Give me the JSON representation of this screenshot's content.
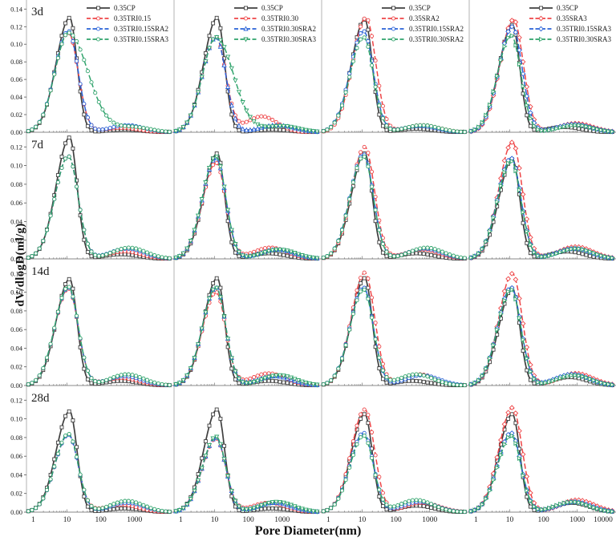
{
  "chart_data": {
    "type": "line",
    "x_scale": "log",
    "xlabel": "Pore Diameter(nm)",
    "ylabel": "dV/dlogD(ml/g)",
    "x_ticks": [
      1,
      10,
      100,
      1000,
      10000
    ],
    "grid": "off",
    "legend_position": "top-right-of-first-row-panels",
    "colors": {
      "black": "#3f3f3f",
      "red": "#ee4547",
      "blue": "#2a63d8",
      "green": "#2fa36b"
    },
    "rows": [
      {
        "label": "3d",
        "ytick_max": 0.14,
        "ytick_step": 0.02,
        "top_value": 0.143
      },
      {
        "label": "7d",
        "ytick_max": 0.12,
        "ytick_step": 0.02,
        "top_value": 0.128
      },
      {
        "label": "14d",
        "ytick_max": 0.12,
        "ytick_step": 0.02,
        "top_value": 0.128
      },
      {
        "label": "28d",
        "ytick_max": 0.12,
        "ytick_step": 0.02,
        "top_value": 0.128
      }
    ],
    "panels": [
      {
        "row": 0,
        "col": 0,
        "series": [
          {
            "label": "0.35CP",
            "color": "black",
            "marker": "square",
            "peak_x": 12,
            "peak_y": 0.13,
            "sigma_right": 0.22,
            "bump_x": 500,
            "bump_y": 0.003
          },
          {
            "label": "0.35TRI0.15",
            "color": "red",
            "marker": "circle",
            "peak_x": 11,
            "peak_y": 0.113,
            "bump_x": 400,
            "bump_y": 0.005
          },
          {
            "label": "0.35TRI0.15SRA2",
            "color": "blue",
            "marker": "circle",
            "peak_x": 11,
            "peak_y": 0.115,
            "bump_x": 600,
            "bump_y": 0.008
          },
          {
            "label": "0.35TRI0.15SRA3",
            "color": "green",
            "marker": "circle",
            "peak_x": 11,
            "peak_y": 0.113,
            "sigma_right": 0.58,
            "bump_x": 900,
            "bump_y": 0.006
          }
        ]
      },
      {
        "row": 0,
        "col": 1,
        "series": [
          {
            "label": "0.35CP",
            "color": "black",
            "marker": "square",
            "peak_x": 12,
            "peak_y": 0.13,
            "sigma_right": 0.22,
            "bump_x": 500,
            "bump_y": 0.003
          },
          {
            "label": "0.35TRI0.30",
            "color": "red",
            "marker": "circle",
            "peak_x": 11,
            "peak_y": 0.108,
            "bump_x": 250,
            "bump_y": 0.018,
            "bump_sigma": 0.45
          },
          {
            "label": "0.35TRI0.30SRA2",
            "color": "blue",
            "marker": "tri-up",
            "peak_x": 11,
            "peak_y": 0.108,
            "bump_x": 700,
            "bump_y": 0.008
          },
          {
            "label": "0.35TRI0.30SRA3",
            "color": "green",
            "marker": "tri-down",
            "peak_x": 11,
            "peak_y": 0.108,
            "sigma_right": 0.52,
            "bump_x": 1000,
            "bump_y": 0.007
          }
        ]
      },
      {
        "row": 0,
        "col": 2,
        "series": [
          {
            "label": "0.35CP",
            "color": "black",
            "marker": "square",
            "peak_x": 12,
            "peak_y": 0.128,
            "sigma_right": 0.22,
            "bump_x": 400,
            "bump_y": 0.004
          },
          {
            "label": "0.35SRA2",
            "color": "red",
            "marker": "circle",
            "peak_x": 13,
            "peak_y": 0.13,
            "bump_x": 600,
            "bump_y": 0.008
          },
          {
            "label": "0.35TRI0.15SRA2",
            "color": "blue",
            "marker": "circle",
            "peak_x": 11,
            "peak_y": 0.115,
            "bump_x": 500,
            "bump_y": 0.007
          },
          {
            "label": "0.35TRI0.30SRA2",
            "color": "green",
            "marker": "circle",
            "peak_x": 11,
            "peak_y": 0.108,
            "bump_x": 600,
            "bump_y": 0.008
          }
        ]
      },
      {
        "row": 0,
        "col": 3,
        "series": [
          {
            "label": "0.35CP",
            "color": "black",
            "marker": "square",
            "peak_x": 12,
            "peak_y": 0.122,
            "sigma_right": 0.22,
            "bump_x": 400,
            "bump_y": 0.006
          },
          {
            "label": "0.35SRA3",
            "color": "red",
            "marker": "diamond",
            "peak_x": 13,
            "peak_y": 0.128,
            "bump_x": 900,
            "bump_y": 0.01
          },
          {
            "label": "0.35TRI0.15SRA3",
            "color": "blue",
            "marker": "diamond",
            "peak_x": 12,
            "peak_y": 0.12,
            "bump_x": 800,
            "bump_y": 0.009
          },
          {
            "label": "0.35TRI0.30SRA3",
            "color": "green",
            "marker": "tri-right",
            "peak_x": 11,
            "peak_y": 0.11,
            "bump_x": 900,
            "bump_y": 0.008
          }
        ]
      },
      {
        "row": 1,
        "col": 0,
        "series": [
          {
            "label": "0.35CP",
            "color": "black",
            "marker": "square",
            "peak_x": 12,
            "peak_y": 0.13,
            "sigma_right": 0.22,
            "bump_x": 400,
            "bump_y": 0.005
          },
          {
            "label": "0.35TRI0.15",
            "color": "red",
            "marker": "circle",
            "peak_x": 11,
            "peak_y": 0.11,
            "bump_x": 500,
            "bump_y": 0.008
          },
          {
            "label": "0.35TRI0.15SRA2",
            "color": "blue",
            "marker": "circle",
            "peak_x": 11,
            "peak_y": 0.11,
            "bump_x": 600,
            "bump_y": 0.011
          },
          {
            "label": "0.35TRI0.15SRA3",
            "color": "green",
            "marker": "circle",
            "peak_x": 11,
            "peak_y": 0.11,
            "bump_x": 700,
            "bump_y": 0.012
          }
        ]
      },
      {
        "row": 1,
        "col": 1,
        "series": [
          {
            "label": "0.35CP",
            "color": "black",
            "marker": "square",
            "peak_x": 12,
            "peak_y": 0.113,
            "sigma_right": 0.22,
            "bump_x": 400,
            "bump_y": 0.006
          },
          {
            "label": "0.35TRI0.30",
            "color": "red",
            "marker": "circle",
            "peak_x": 11,
            "peak_y": 0.103,
            "bump_x": 450,
            "bump_y": 0.012
          },
          {
            "label": "0.35TRI0.30SRA2",
            "color": "blue",
            "marker": "tri-up",
            "peak_x": 11,
            "peak_y": 0.108,
            "bump_x": 700,
            "bump_y": 0.01
          },
          {
            "label": "0.35TRI0.30SRA3",
            "color": "green",
            "marker": "tri-down",
            "peak_x": 11,
            "peak_y": 0.11,
            "bump_x": 800,
            "bump_y": 0.01
          }
        ]
      },
      {
        "row": 1,
        "col": 2,
        "series": [
          {
            "label": "0.35CP",
            "color": "black",
            "marker": "square",
            "peak_x": 12,
            "peak_y": 0.113,
            "sigma_right": 0.22,
            "bump_x": 400,
            "bump_y": 0.006
          },
          {
            "label": "0.35SRA2",
            "color": "red",
            "marker": "circle",
            "peak_x": 12,
            "peak_y": 0.12,
            "bump_x": 600,
            "bump_y": 0.01
          },
          {
            "label": "0.35TRI0.15SRA2",
            "color": "blue",
            "marker": "circle",
            "peak_x": 11,
            "peak_y": 0.112,
            "bump_x": 700,
            "bump_y": 0.011
          },
          {
            "label": "0.35TRI0.30SRA2",
            "color": "green",
            "marker": "circle",
            "peak_x": 11,
            "peak_y": 0.11,
            "bump_x": 800,
            "bump_y": 0.012
          }
        ]
      },
      {
        "row": 1,
        "col": 3,
        "series": [
          {
            "label": "0.35CP",
            "color": "black",
            "marker": "square",
            "peak_x": 12,
            "peak_y": 0.107,
            "sigma_right": 0.22,
            "bump_x": 500,
            "bump_y": 0.008
          },
          {
            "label": "0.35SRA3",
            "color": "red",
            "marker": "diamond",
            "peak_x": 12,
            "peak_y": 0.125,
            "bump_x": 900,
            "bump_y": 0.013
          },
          {
            "label": "0.35TRI0.15SRA3",
            "color": "blue",
            "marker": "diamond",
            "peak_x": 11,
            "peak_y": 0.108,
            "bump_x": 800,
            "bump_y": 0.011
          },
          {
            "label": "0.35TRI0.30SRA3",
            "color": "green",
            "marker": "tri-right",
            "peak_x": 11,
            "peak_y": 0.105,
            "bump_x": 900,
            "bump_y": 0.011
          }
        ]
      },
      {
        "row": 2,
        "col": 0,
        "series": [
          {
            "label": "0.35CP",
            "color": "black",
            "marker": "square",
            "peak_x": 12,
            "peak_y": 0.114,
            "sigma_right": 0.22,
            "bump_x": 400,
            "bump_y": 0.005
          },
          {
            "label": "0.35TRI0.15",
            "color": "red",
            "marker": "circle",
            "peak_x": 11,
            "peak_y": 0.104,
            "bump_x": 400,
            "bump_y": 0.008
          },
          {
            "label": "0.35TRI0.15SRA2",
            "color": "blue",
            "marker": "circle",
            "peak_x": 11,
            "peak_y": 0.105,
            "bump_x": 500,
            "bump_y": 0.01
          },
          {
            "label": "0.35TRI0.15SRA3",
            "color": "green",
            "marker": "circle",
            "peak_x": 11,
            "peak_y": 0.106,
            "bump_x": 600,
            "bump_y": 0.012
          }
        ]
      },
      {
        "row": 2,
        "col": 1,
        "series": [
          {
            "label": "0.35CP",
            "color": "black",
            "marker": "square",
            "peak_x": 12,
            "peak_y": 0.115,
            "sigma_right": 0.22,
            "bump_x": 400,
            "bump_y": 0.005
          },
          {
            "label": "0.35TRI0.30",
            "color": "red",
            "marker": "circle",
            "peak_x": 11,
            "peak_y": 0.1,
            "bump_x": 400,
            "bump_y": 0.013
          },
          {
            "label": "0.35TRI0.30SRA2",
            "color": "blue",
            "marker": "tri-up",
            "peak_x": 11,
            "peak_y": 0.105,
            "bump_x": 600,
            "bump_y": 0.01
          },
          {
            "label": "0.35TRI0.30SRA3",
            "color": "green",
            "marker": "tri-down",
            "peak_x": 11,
            "peak_y": 0.105,
            "bump_x": 800,
            "bump_y": 0.011
          }
        ]
      },
      {
        "row": 2,
        "col": 2,
        "series": [
          {
            "label": "0.35CP",
            "color": "black",
            "marker": "square",
            "peak_x": 12,
            "peak_y": 0.115,
            "sigma_right": 0.22,
            "bump_x": 300,
            "bump_y": 0.005
          },
          {
            "label": "0.35SRA2",
            "color": "red",
            "marker": "circle",
            "peak_x": 12,
            "peak_y": 0.121,
            "bump_x": 500,
            "bump_y": 0.012
          },
          {
            "label": "0.35TRI0.15SRA2",
            "color": "blue",
            "marker": "circle",
            "peak_x": 11,
            "peak_y": 0.105,
            "bump_x": 600,
            "bump_y": 0.011
          },
          {
            "label": "0.35TRI0.30SRA2",
            "color": "green",
            "marker": "circle",
            "peak_x": 11,
            "peak_y": 0.103,
            "bump_x": 400,
            "bump_y": 0.012
          }
        ]
      },
      {
        "row": 2,
        "col": 3,
        "series": [
          {
            "label": "0.35CP",
            "color": "black",
            "marker": "square",
            "peak_x": 12,
            "peak_y": 0.104,
            "sigma_right": 0.22,
            "bump_x": 600,
            "bump_y": 0.009
          },
          {
            "label": "0.35SRA3",
            "color": "red",
            "marker": "diamond",
            "peak_x": 12,
            "peak_y": 0.12,
            "bump_x": 900,
            "bump_y": 0.013
          },
          {
            "label": "0.35TRI0.15SRA3",
            "color": "blue",
            "marker": "diamond",
            "peak_x": 11,
            "peak_y": 0.105,
            "bump_x": 700,
            "bump_y": 0.012
          },
          {
            "label": "0.35TRI0.30SRA3",
            "color": "green",
            "marker": "tri-right",
            "peak_x": 11,
            "peak_y": 0.103,
            "bump_x": 800,
            "bump_y": 0.011
          }
        ]
      },
      {
        "row": 3,
        "col": 0,
        "series": [
          {
            "label": "0.35CP",
            "color": "black",
            "marker": "square",
            "peak_x": 12,
            "peak_y": 0.108,
            "sigma_right": 0.22,
            "bump_x": 500,
            "bump_y": 0.004
          },
          {
            "label": "0.35TRI0.15",
            "color": "red",
            "marker": "circle",
            "peak_x": 11,
            "peak_y": 0.083,
            "bump_x": 400,
            "bump_y": 0.008
          },
          {
            "label": "0.35TRI0.15SRA2",
            "color": "blue",
            "marker": "circle",
            "peak_x": 11,
            "peak_y": 0.083,
            "bump_x": 600,
            "bump_y": 0.01
          },
          {
            "label": "0.35TRI0.15SRA3",
            "color": "green",
            "marker": "circle",
            "peak_x": 11,
            "peak_y": 0.084,
            "bump_x": 600,
            "bump_y": 0.012
          }
        ]
      },
      {
        "row": 3,
        "col": 1,
        "series": [
          {
            "label": "0.35CP",
            "color": "black",
            "marker": "square",
            "peak_x": 12,
            "peak_y": 0.11,
            "sigma_right": 0.22,
            "bump_x": 500,
            "bump_y": 0.004
          },
          {
            "label": "0.35TRI0.30",
            "color": "red",
            "marker": "circle",
            "peak_x": 11,
            "peak_y": 0.079,
            "bump_x": 400,
            "bump_y": 0.01
          },
          {
            "label": "0.35TRI0.30SRA2",
            "color": "blue",
            "marker": "tri-up",
            "peak_x": 11,
            "peak_y": 0.08,
            "bump_x": 600,
            "bump_y": 0.01
          },
          {
            "label": "0.35TRI0.30SRA3",
            "color": "green",
            "marker": "tri-down",
            "peak_x": 11,
            "peak_y": 0.081,
            "bump_x": 700,
            "bump_y": 0.011
          }
        ]
      },
      {
        "row": 3,
        "col": 2,
        "series": [
          {
            "label": "0.35CP",
            "color": "black",
            "marker": "square",
            "peak_x": 12,
            "peak_y": 0.105,
            "sigma_right": 0.22,
            "bump_x": 400,
            "bump_y": 0.007
          },
          {
            "label": "0.35SRA2",
            "color": "red",
            "marker": "circle",
            "peak_x": 12,
            "peak_y": 0.11,
            "bump_x": 600,
            "bump_y": 0.01
          },
          {
            "label": "0.35TRI0.15SRA2",
            "color": "blue",
            "marker": "circle",
            "peak_x": 11,
            "peak_y": 0.085,
            "bump_x": 500,
            "bump_y": 0.011
          },
          {
            "label": "0.35TRI0.30SRA2",
            "color": "green",
            "marker": "circle",
            "peak_x": 11,
            "peak_y": 0.082,
            "bump_x": 400,
            "bump_y": 0.013
          }
        ]
      },
      {
        "row": 3,
        "col": 3,
        "series": [
          {
            "label": "0.35CP",
            "color": "black",
            "marker": "square",
            "peak_x": 12,
            "peak_y": 0.105,
            "sigma_right": 0.22,
            "bump_x": 700,
            "bump_y": 0.01
          },
          {
            "label": "0.35SRA3",
            "color": "red",
            "marker": "diamond",
            "peak_x": 12,
            "peak_y": 0.112,
            "bump_x": 1000,
            "bump_y": 0.013
          },
          {
            "label": "0.35TRI0.15SRA3",
            "color": "blue",
            "marker": "diamond",
            "peak_x": 11,
            "peak_y": 0.085,
            "bump_x": 800,
            "bump_y": 0.011
          },
          {
            "label": "0.35TRI0.30SRA3",
            "color": "green",
            "marker": "tri-right",
            "peak_x": 11,
            "peak_y": 0.082,
            "bump_x": 700,
            "bump_y": 0.011
          }
        ]
      }
    ]
  }
}
